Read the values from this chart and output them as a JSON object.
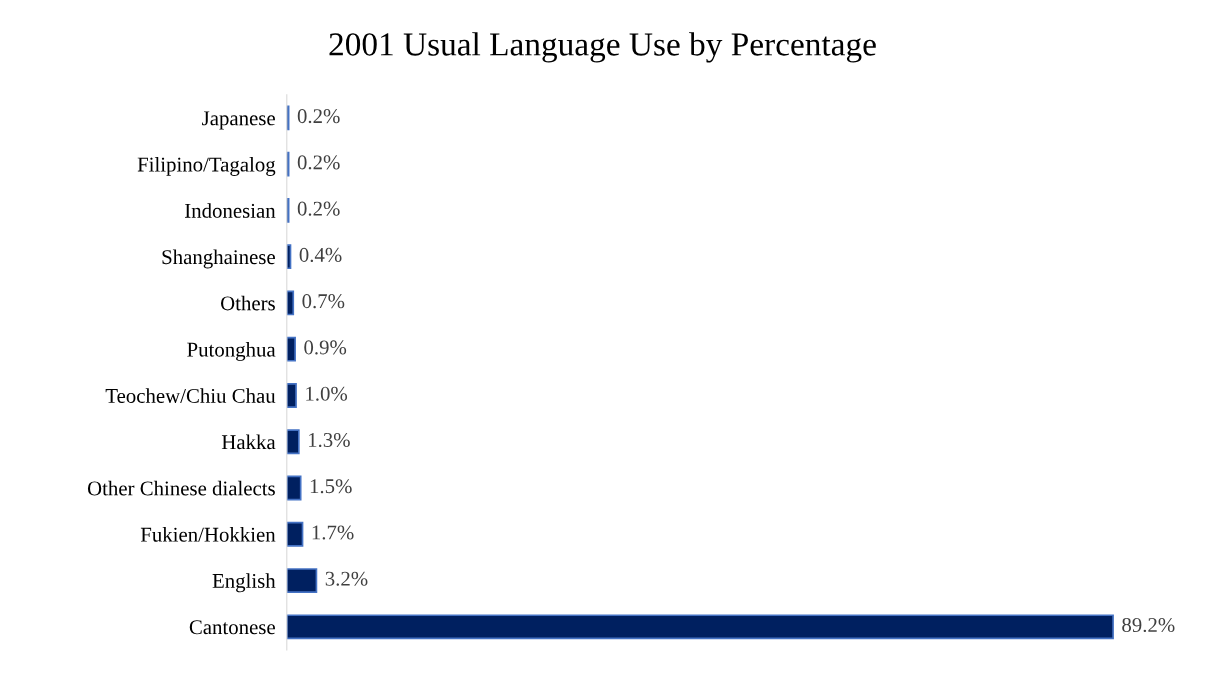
{
  "chart_data": {
    "type": "bar",
    "orientation": "horizontal",
    "title": "2001 Usual Language Use by Percentage",
    "categories": [
      "Japanese",
      "Filipino/Tagalog",
      "Indonesian",
      "Shanghainese",
      "Others",
      "Putonghua",
      "Teochew/Chiu Chau",
      "Hakka",
      "Other Chinese dialects",
      "Fukien/Hokkien",
      "English",
      "Cantonese"
    ],
    "values": [
      0.2,
      0.2,
      0.2,
      0.4,
      0.7,
      0.9,
      1.0,
      1.3,
      1.5,
      1.7,
      3.2,
      89.2
    ],
    "value_labels": [
      "0.2%",
      "0.2%",
      "0.2%",
      "0.4%",
      "0.7%",
      "0.9%",
      "1.0%",
      "1.3%",
      "1.5%",
      "1.7%",
      "3.2%",
      "89.2%"
    ],
    "color": "#002060",
    "grid": false,
    "legend": false
  }
}
